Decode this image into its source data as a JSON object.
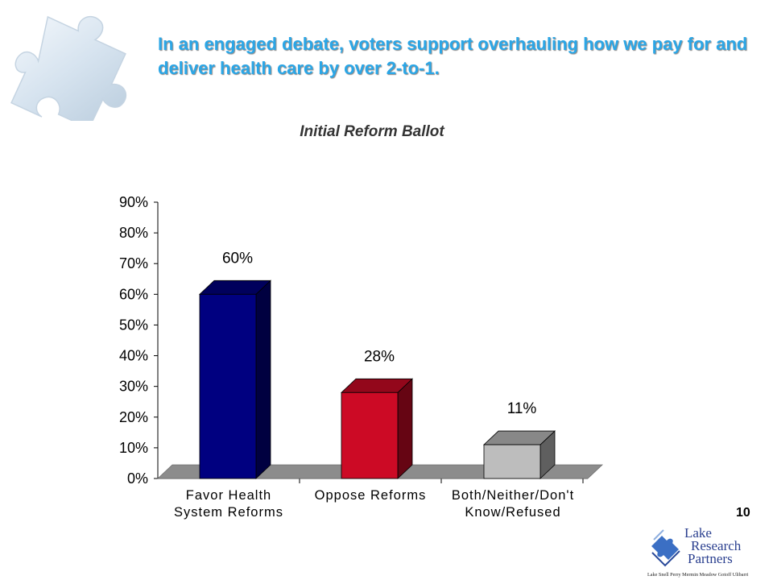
{
  "headline": "In an engaged debate, voters support overhauling how we pay for and deliver health care by over 2-to-1.",
  "page_number": "10",
  "logo": {
    "line1": "Lake",
    "line2": "Research",
    "line3": "Partners",
    "names": "Lake  Snell  Perry  Mermin  Meadow  Gotoff  Ulibarri"
  },
  "colors": {
    "headline": "#2ba6e6",
    "series": [
      "#000080",
      "#cc0a25",
      "#bdbdbd"
    ],
    "floor": "#8c8c8c"
  },
  "chart_data": {
    "type": "bar",
    "title": "Initial Reform Ballot",
    "categories": [
      [
        "Favor Health",
        "System Reforms"
      ],
      [
        "Oppose Reforms"
      ],
      [
        "Both/Neither/Don't",
        "Know/Refused"
      ]
    ],
    "values": [
      60,
      28,
      11
    ],
    "data_labels": [
      "60%",
      "28%",
      "11%"
    ],
    "ylim": [
      0,
      90
    ],
    "yticks": [
      "0%",
      "10%",
      "20%",
      "30%",
      "40%",
      "50%",
      "60%",
      "70%",
      "80%",
      "90%"
    ],
    "grid": false,
    "style": "3d-column"
  }
}
